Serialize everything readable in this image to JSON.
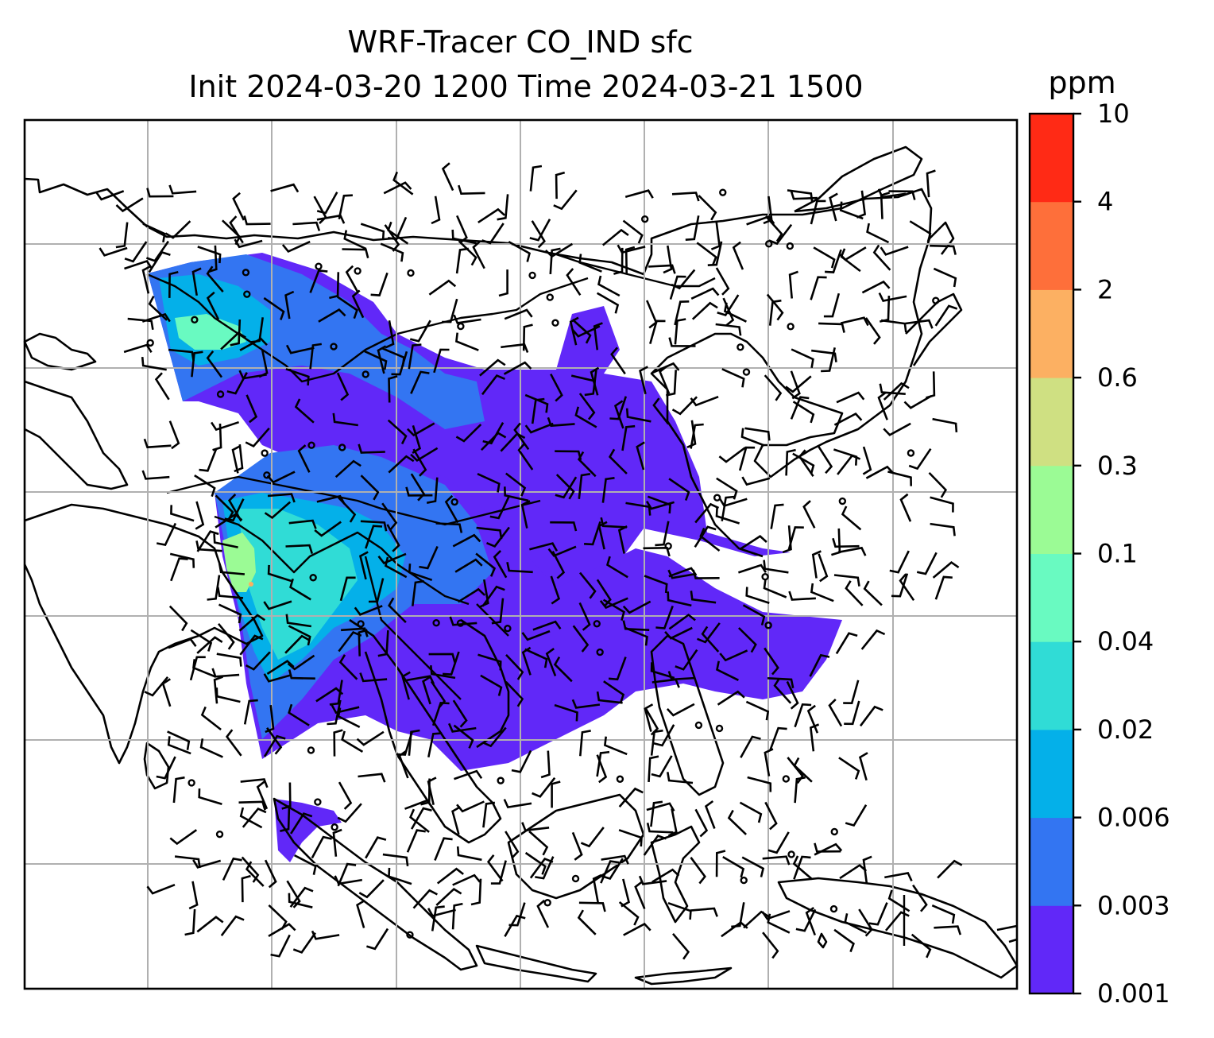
{
  "chart_data": {
    "type": "heatmap",
    "title": "WRF-Tracer CO_IND sfc",
    "subtitle": "Init 2024-03-20 1200 Time 2024-03-21 1500",
    "colorbar": {
      "label": "ppm",
      "levels": [
        0.001,
        0.003,
        0.006,
        0.02,
        0.04,
        0.1,
        0.3,
        0.6,
        2,
        4,
        10
      ],
      "tick_labels": [
        "0.001",
        "0.003",
        "0.006",
        "0.02",
        "0.04",
        "0.1",
        "0.3",
        "0.6",
        "2",
        "4",
        "10"
      ],
      "colors": [
        "#6128f8",
        "#3375f2",
        "#04b0e9",
        "#30dcd6",
        "#69fac1",
        "#9bfb95",
        "#cfe082",
        "#fcb062",
        "#fe6f3a",
        "#ff2a15"
      ]
    },
    "grid": true,
    "overlays": [
      "coastlines",
      "country borders",
      "wind barbs"
    ]
  }
}
